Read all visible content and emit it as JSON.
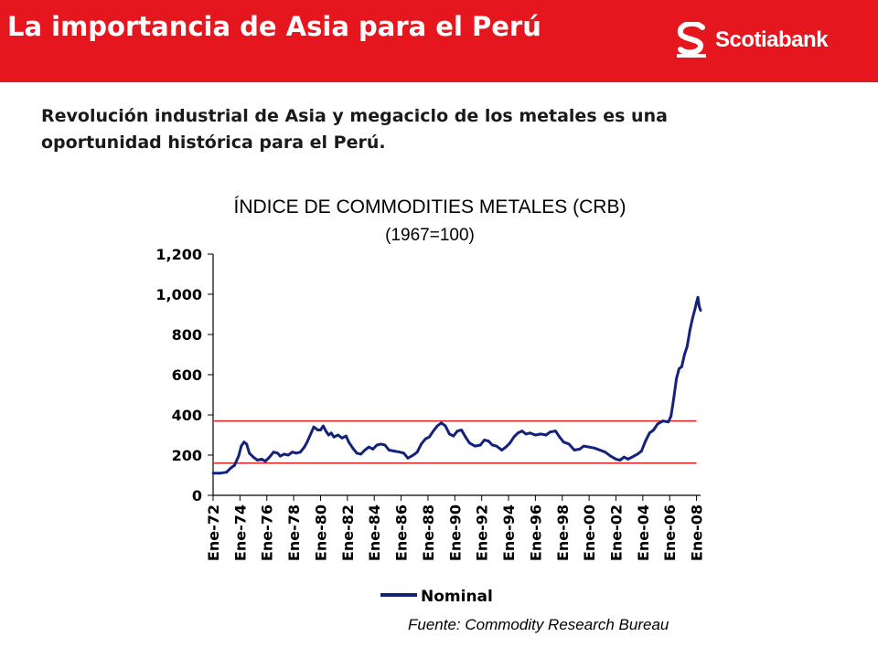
{
  "header": {
    "title": "La importancia de Asia para el Perú",
    "brand": "Scotiabank",
    "bg_color": "#e5161d"
  },
  "subtitle": "Revolución industrial de Asia y megaciclo de los metales es una oportunidad histórica para el Perú.",
  "source": "Fuente: Commodity Research Bureau",
  "chart_data": {
    "type": "line",
    "title": "ÍNDICE DE COMMODITIES METALES (CRB)",
    "subtitle": "(1967=100)",
    "xlabel": "",
    "ylabel": "",
    "ylim": [
      0,
      1200
    ],
    "yticks": [
      0,
      200,
      400,
      600,
      800,
      1000,
      1200
    ],
    "ytick_labels": [
      "0",
      "200",
      "400",
      "600",
      "800",
      "1,000",
      "1,200"
    ],
    "x_start_year": 1972,
    "x_end_year": 2008.3,
    "xtick_years": [
      1972,
      1974,
      1976,
      1978,
      1980,
      1982,
      1984,
      1986,
      1988,
      1990,
      1992,
      1994,
      1996,
      1998,
      2000,
      2002,
      2004,
      2006,
      2008
    ],
    "xtick_labels": [
      "Ene-72",
      "Ene-74",
      "Ene-76",
      "Ene-78",
      "Ene-80",
      "Ene-82",
      "Ene-84",
      "Ene-86",
      "Ene-88",
      "Ene-90",
      "Ene-92",
      "Ene-94",
      "Ene-96",
      "Ene-98",
      "Ene-00",
      "Ene-02",
      "Ene-04",
      "Ene-06",
      "Ene-08"
    ],
    "grid": false,
    "legend_position": "bottom",
    "series": [
      {
        "name": "Nominal",
        "color": "#13237a",
        "points": [
          [
            1972.0,
            110
          ],
          [
            1972.5,
            110
          ],
          [
            1973.0,
            115
          ],
          [
            1973.3,
            135
          ],
          [
            1973.6,
            150
          ],
          [
            1973.9,
            195
          ],
          [
            1974.1,
            245
          ],
          [
            1974.3,
            265
          ],
          [
            1974.5,
            255
          ],
          [
            1974.7,
            210
          ],
          [
            1975.0,
            190
          ],
          [
            1975.3,
            175
          ],
          [
            1975.6,
            180
          ],
          [
            1975.9,
            170
          ],
          [
            1976.2,
            190
          ],
          [
            1976.5,
            215
          ],
          [
            1976.8,
            210
          ],
          [
            1977.0,
            195
          ],
          [
            1977.3,
            205
          ],
          [
            1977.6,
            200
          ],
          [
            1977.9,
            215
          ],
          [
            1978.2,
            210
          ],
          [
            1978.5,
            215
          ],
          [
            1978.8,
            240
          ],
          [
            1979.0,
            265
          ],
          [
            1979.3,
            310
          ],
          [
            1979.5,
            340
          ],
          [
            1979.8,
            325
          ],
          [
            1980.0,
            325
          ],
          [
            1980.2,
            345
          ],
          [
            1980.4,
            320
          ],
          [
            1980.6,
            300
          ],
          [
            1980.8,
            310
          ],
          [
            1981.0,
            290
          ],
          [
            1981.3,
            300
          ],
          [
            1981.6,
            285
          ],
          [
            1981.9,
            295
          ],
          [
            1982.1,
            265
          ],
          [
            1982.4,
            235
          ],
          [
            1982.7,
            210
          ],
          [
            1983.0,
            205
          ],
          [
            1983.3,
            225
          ],
          [
            1983.6,
            240
          ],
          [
            1983.9,
            230
          ],
          [
            1984.2,
            250
          ],
          [
            1984.5,
            255
          ],
          [
            1984.8,
            250
          ],
          [
            1985.1,
            225
          ],
          [
            1985.5,
            220
          ],
          [
            1985.9,
            215
          ],
          [
            1986.2,
            210
          ],
          [
            1986.5,
            185
          ],
          [
            1986.9,
            200
          ],
          [
            1987.2,
            215
          ],
          [
            1987.5,
            255
          ],
          [
            1987.8,
            280
          ],
          [
            1988.1,
            290
          ],
          [
            1988.4,
            320
          ],
          [
            1988.7,
            345
          ],
          [
            1989.0,
            360
          ],
          [
            1989.3,
            345
          ],
          [
            1989.6,
            305
          ],
          [
            1989.9,
            295
          ],
          [
            1990.2,
            320
          ],
          [
            1990.5,
            325
          ],
          [
            1990.8,
            290
          ],
          [
            1991.1,
            260
          ],
          [
            1991.5,
            245
          ],
          [
            1991.9,
            250
          ],
          [
            1992.2,
            275
          ],
          [
            1992.5,
            270
          ],
          [
            1992.8,
            250
          ],
          [
            1993.1,
            245
          ],
          [
            1993.5,
            225
          ],
          [
            1993.8,
            240
          ],
          [
            1994.1,
            260
          ],
          [
            1994.4,
            290
          ],
          [
            1994.7,
            310
          ],
          [
            1995.0,
            320
          ],
          [
            1995.3,
            305
          ],
          [
            1995.6,
            310
          ],
          [
            1996.0,
            300
          ],
          [
            1996.4,
            305
          ],
          [
            1996.8,
            300
          ],
          [
            1997.1,
            315
          ],
          [
            1997.5,
            320
          ],
          [
            1997.8,
            290
          ],
          [
            1998.1,
            265
          ],
          [
            1998.5,
            255
          ],
          [
            1998.9,
            225
          ],
          [
            1999.3,
            230
          ],
          [
            1999.6,
            245
          ],
          [
            2000.0,
            240
          ],
          [
            2000.4,
            235
          ],
          [
            2000.8,
            225
          ],
          [
            2001.2,
            215
          ],
          [
            2001.6,
            195
          ],
          [
            2002.0,
            180
          ],
          [
            2002.3,
            175
          ],
          [
            2002.6,
            190
          ],
          [
            2002.9,
            180
          ],
          [
            2003.2,
            190
          ],
          [
            2003.6,
            205
          ],
          [
            2003.9,
            220
          ],
          [
            2004.2,
            270
          ],
          [
            2004.5,
            310
          ],
          [
            2004.8,
            325
          ],
          [
            2005.1,
            355
          ],
          [
            2005.5,
            370
          ],
          [
            2005.9,
            365
          ],
          [
            2006.1,
            395
          ],
          [
            2006.3,
            480
          ],
          [
            2006.5,
            580
          ],
          [
            2006.7,
            630
          ],
          [
            2006.9,
            640
          ],
          [
            2007.1,
            700
          ],
          [
            2007.3,
            740
          ],
          [
            2007.5,
            820
          ],
          [
            2007.7,
            880
          ],
          [
            2007.9,
            930
          ],
          [
            2008.0,
            960
          ],
          [
            2008.1,
            985
          ],
          [
            2008.2,
            940
          ],
          [
            2008.3,
            920
          ]
        ]
      }
    ],
    "reference_lines": [
      {
        "value": 370,
        "color": "#e02020",
        "x_from": 1972,
        "x_to": 2008.0
      },
      {
        "value": 160,
        "color": "#e02020",
        "x_from": 1972,
        "x_to": 2008.0
      }
    ]
  }
}
